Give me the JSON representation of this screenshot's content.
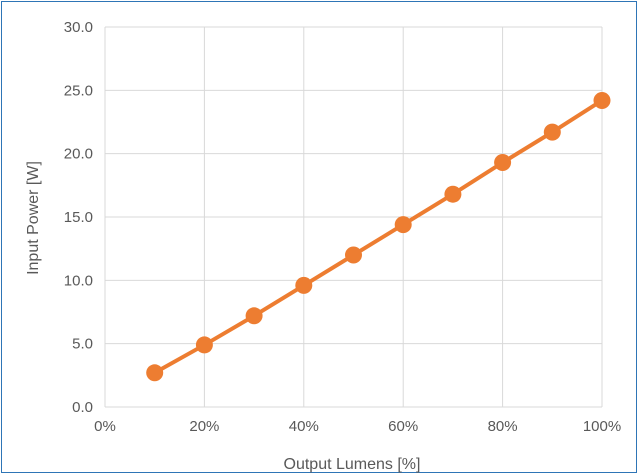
{
  "chart_data": {
    "type": "line",
    "title": "",
    "xlabel": "Output Lumens [%]",
    "ylabel": "Input Power [W]",
    "xlim": [
      0,
      100
    ],
    "ylim": [
      0,
      30
    ],
    "x_ticks": [
      "0%",
      "20%",
      "40%",
      "60%",
      "80%",
      "100%"
    ],
    "y_ticks": [
      "0.0",
      "5.0",
      "10.0",
      "15.0",
      "20.0",
      "25.0",
      "30.0"
    ],
    "grid": true,
    "legend": "none",
    "colors": {
      "series": "#ed7d31",
      "grid": "#d9d9d9",
      "border": "#2e75b6"
    },
    "series": [
      {
        "x": [
          10,
          20,
          30,
          40,
          50,
          60,
          70,
          80,
          90,
          100
        ],
        "values": [
          2.7,
          4.9,
          7.2,
          9.6,
          12.0,
          14.4,
          16.8,
          19.3,
          21.7,
          24.2
        ]
      }
    ]
  }
}
